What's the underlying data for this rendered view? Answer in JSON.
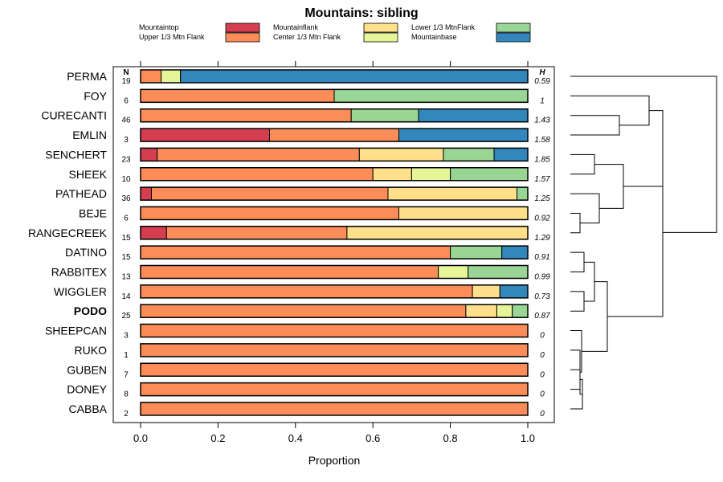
{
  "chart_data": {
    "type": "stacked-bar-horizontal",
    "title": "Mountains: sibling",
    "xlabel": "Proportion",
    "xlim": [
      -0.03,
      1.07
    ],
    "xticks": [
      "0.0",
      "0.2",
      "0.4",
      "0.6",
      "0.8",
      "1.0"
    ],
    "n_header": "N",
    "h_header": "H",
    "legend": [
      {
        "name": "Mountaintop",
        "color": "#d53e4f"
      },
      {
        "name": "Upper 1/3 Mtn Flank",
        "color": "#fc8d59"
      },
      {
        "name": "Mountainflank",
        "color": "#fee08b"
      },
      {
        "name": "Center 1/3 Mtn Flank",
        "color": "#e6f598"
      },
      {
        "name": "Lower 1/3 MtnFlank",
        "color": "#99d594"
      },
      {
        "name": "Mountainbase",
        "color": "#3288bd"
      }
    ],
    "rows": [
      {
        "label": "PERMA",
        "n": "19",
        "h": "0.59",
        "bold": false,
        "values": [
          0,
          0.053,
          0,
          0.05,
          0,
          0.897
        ]
      },
      {
        "label": "FOY",
        "n": "6",
        "h": "1",
        "bold": false,
        "values": [
          0,
          0.5,
          0,
          0,
          0.5,
          0
        ]
      },
      {
        "label": "CURECANTI",
        "n": "46",
        "h": "1.43",
        "bold": false,
        "values": [
          0,
          0.544,
          0,
          0,
          0.174,
          0.282
        ]
      },
      {
        "label": "EMLIN",
        "n": "3",
        "h": "1.58",
        "bold": false,
        "values": [
          0.333,
          0.334,
          0,
          0,
          0,
          0.333
        ]
      },
      {
        "label": "SENCHERT",
        "n": "23",
        "h": "1.85",
        "bold": false,
        "values": [
          0.043,
          0.522,
          0.217,
          0,
          0.131,
          0.087
        ]
      },
      {
        "label": "SHEEK",
        "n": "10",
        "h": "1.57",
        "bold": false,
        "values": [
          0,
          0.6,
          0.1,
          0.1,
          0.2,
          0
        ]
      },
      {
        "label": "PATHEAD",
        "n": "36",
        "h": "1.25",
        "bold": false,
        "values": [
          0.028,
          0.611,
          0.333,
          0,
          0.028,
          0
        ]
      },
      {
        "label": "BEJE",
        "n": "6",
        "h": "0.92",
        "bold": false,
        "values": [
          0,
          0.667,
          0.333,
          0,
          0,
          0
        ]
      },
      {
        "label": "RANGECREEK",
        "n": "15",
        "h": "1.29",
        "bold": false,
        "values": [
          0.067,
          0.466,
          0.467,
          0,
          0,
          0
        ]
      },
      {
        "label": "DATINO",
        "n": "15",
        "h": "0.91",
        "bold": false,
        "values": [
          0,
          0.8,
          0,
          0,
          0.133,
          0.067
        ]
      },
      {
        "label": "RABBITEX",
        "n": "13",
        "h": "0.99",
        "bold": false,
        "values": [
          0,
          0.769,
          0,
          0.077,
          0.154,
          0
        ]
      },
      {
        "label": "WIGGLER",
        "n": "14",
        "h": "0.73",
        "bold": false,
        "values": [
          0,
          0.857,
          0.071,
          0,
          0,
          0.072
        ]
      },
      {
        "label": "PODO",
        "n": "25",
        "h": "0.87",
        "bold": true,
        "values": [
          0,
          0.84,
          0.08,
          0.04,
          0.04,
          0
        ]
      },
      {
        "label": "SHEEPCAN",
        "n": "3",
        "h": "0",
        "bold": false,
        "values": [
          0,
          1,
          0,
          0,
          0,
          0
        ]
      },
      {
        "label": "RUKO",
        "n": "1",
        "h": "0",
        "bold": false,
        "values": [
          0,
          1,
          0,
          0,
          0,
          0
        ]
      },
      {
        "label": "GUBEN",
        "n": "7",
        "h": "0",
        "bold": false,
        "values": [
          0,
          1,
          0,
          0,
          0,
          0
        ]
      },
      {
        "label": "DONEY",
        "n": "8",
        "h": "0",
        "bold": false,
        "values": [
          0,
          1,
          0,
          0,
          0,
          0
        ]
      },
      {
        "label": "CABBA",
        "n": "2",
        "h": "0",
        "bold": false,
        "values": [
          0,
          1,
          0,
          0,
          0,
          0
        ]
      }
    ]
  }
}
